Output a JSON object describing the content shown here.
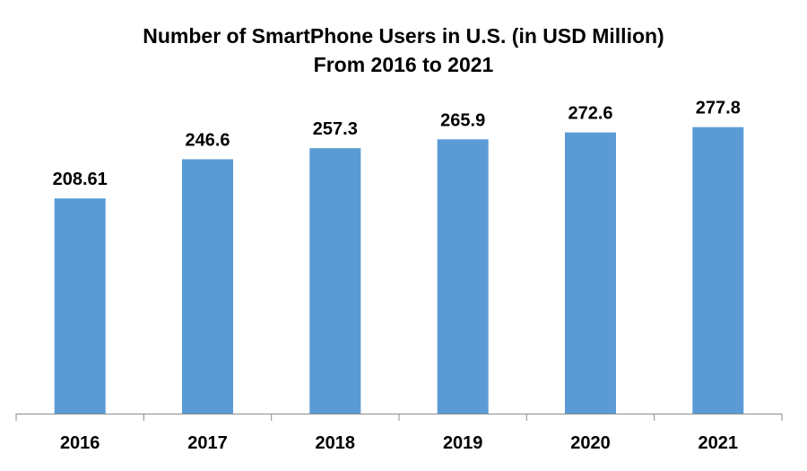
{
  "chart_data": {
    "type": "bar",
    "title": "Number of SmartPhone Users in U.S. (in USD Million)",
    "subtitle": "From 2016 to 2021",
    "categories": [
      "2016",
      "2017",
      "2018",
      "2019",
      "2020",
      "2021"
    ],
    "values": [
      208.61,
      246.6,
      257.3,
      265.9,
      272.6,
      277.8
    ],
    "data_labels": [
      "208.61",
      "246.6",
      "257.3",
      "265.9",
      "272.6",
      "277.8"
    ],
    "xlabel": "",
    "ylabel": "",
    "ylim": [
      0,
      300
    ],
    "grid": false,
    "legend": "none",
    "bar_color": "#5b9bd5",
    "axis_color": "#8c8c8c"
  }
}
